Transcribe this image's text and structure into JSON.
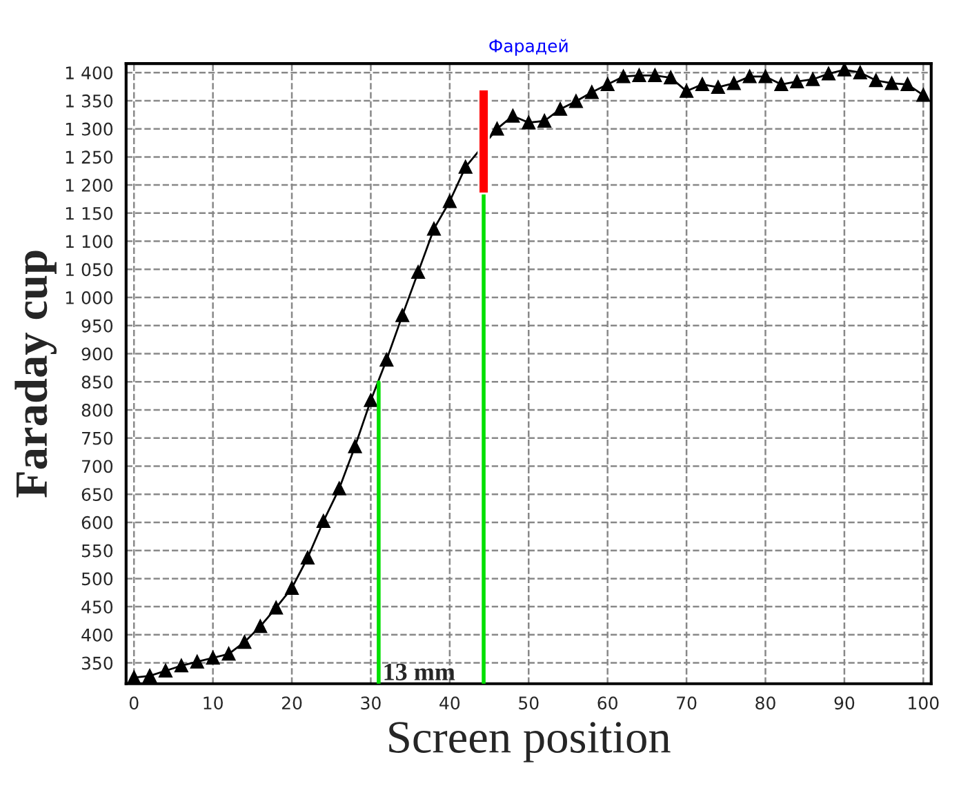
{
  "chart_data": {
    "type": "line",
    "subtitle": "Фарадей",
    "xlabel": "Screen position",
    "ylabel": "Faraday cup",
    "series": [
      {
        "color": "#000000",
        "marker": "triangle",
        "x": [
          0,
          2,
          4,
          6,
          8,
          10,
          12,
          14,
          16,
          18,
          20,
          22,
          24,
          26,
          28,
          30,
          32,
          34,
          36,
          38,
          40,
          42,
          46,
          48,
          50,
          52,
          54,
          56,
          58,
          60,
          62,
          64,
          66,
          68,
          70,
          72,
          74,
          76,
          78,
          80,
          82,
          84,
          86,
          88,
          90,
          92,
          94,
          96,
          98,
          100
        ],
        "values": [
          324,
          327,
          336,
          345,
          352,
          359,
          366,
          387,
          415,
          448,
          483,
          537,
          602,
          660,
          735,
          817,
          889,
          968,
          1045,
          1122,
          1171,
          1232,
          1300,
          1323,
          1311,
          1314,
          1335,
          1349,
          1365,
          1379,
          1393,
          1395,
          1395,
          1391,
          1367,
          1379,
          1374,
          1381,
          1393,
          1393,
          1379,
          1384,
          1388,
          1398,
          1405,
          1400,
          1386,
          1381,
          1379,
          1360
        ]
      },
      {
        "color": "#00e000",
        "marker": "none",
        "x": [
          31,
          31
        ],
        "values": [
          313,
          849
        ]
      },
      {
        "color": "#00e000",
        "marker": "none",
        "x": [
          44.3,
          44.3
        ],
        "values": [
          313,
          1185
        ]
      },
      {
        "type": "bar",
        "color": "#ff0000",
        "x": [
          44.3
        ],
        "base": [
          1185
        ],
        "values": [
          185
        ]
      }
    ],
    "annotations": [
      {
        "text": "13 mm",
        "x": 31.5,
        "y": 330
      }
    ],
    "xlim": [
      -1,
      101
    ],
    "ylim": [
      313,
      1416
    ],
    "xticks": [
      0,
      10,
      20,
      30,
      40,
      50,
      60,
      70,
      80,
      90,
      100
    ],
    "yticks": [
      350,
      400,
      450,
      500,
      550,
      600,
      650,
      700,
      750,
      800,
      850,
      900,
      950,
      {
        "value": 1000,
        "label": "1 000"
      },
      {
        "value": 1050,
        "label": "1 050"
      },
      {
        "value": 1100,
        "label": "1 100"
      },
      {
        "value": 1150,
        "label": "1 150"
      },
      {
        "value": 1200,
        "label": "1 200"
      },
      {
        "value": 1250,
        "label": "1 250"
      },
      {
        "value": 1300,
        "label": "1 300"
      },
      {
        "value": 1350,
        "label": "1 350"
      },
      {
        "value": 1400,
        "label": "1 400"
      }
    ],
    "grid": true,
    "line_style": "solid",
    "legend": false
  }
}
